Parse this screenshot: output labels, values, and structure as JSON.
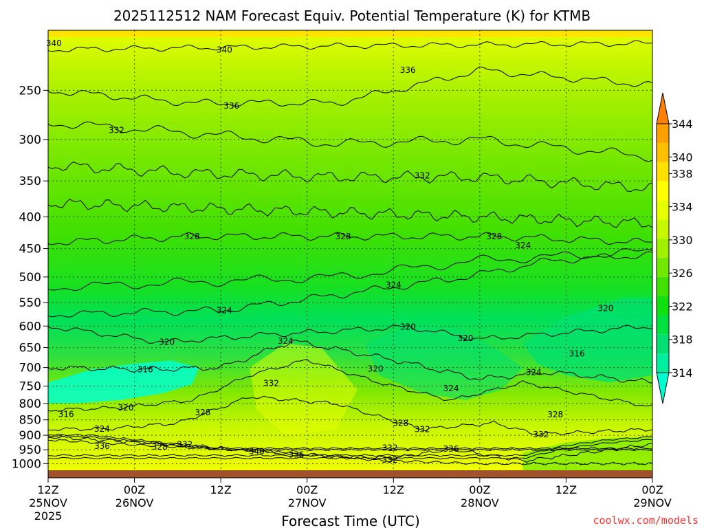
{
  "chart_data": {
    "type": "heatmap",
    "title": "2025112512 NAM Forecast Equiv. Potential Temperature (K) for KTMB",
    "xlabel": "Forecast Time (UTC)",
    "ylabel": "",
    "x_ticks": [
      {
        "hours": 0,
        "l1": "12Z",
        "l2": "25NOV",
        "l3": "2025"
      },
      {
        "hours": 12,
        "l1": "00Z",
        "l2": "26NOV",
        "l3": ""
      },
      {
        "hours": 24,
        "l1": "12Z",
        "l2": "",
        "l3": ""
      },
      {
        "hours": 36,
        "l1": "00Z",
        "l2": "27NOV",
        "l3": ""
      },
      {
        "hours": 48,
        "l1": "12Z",
        "l2": "",
        "l3": ""
      },
      {
        "hours": 60,
        "l1": "00Z",
        "l2": "28NOV",
        "l3": ""
      },
      {
        "hours": 72,
        "l1": "12Z",
        "l2": "",
        "l3": ""
      },
      {
        "hours": 84,
        "l1": "00Z",
        "l2": "29NOV",
        "l3": ""
      }
    ],
    "xlim_hours": [
      0,
      84
    ],
    "y_levels_hpa": [
      250,
      300,
      350,
      400,
      450,
      500,
      550,
      600,
      650,
      700,
      750,
      800,
      850,
      900,
      950,
      1000
    ],
    "ylim_hpa": [
      200,
      1025
    ],
    "y_scale": "log",
    "y_reversed": true,
    "grid": true,
    "colorbar": {
      "levels": [
        314,
        316,
        318,
        320,
        322,
        324,
        326,
        328,
        330,
        332,
        334,
        336,
        338,
        340,
        342,
        344
      ],
      "tick_labels": [
        314,
        318,
        322,
        326,
        330,
        334,
        338,
        340,
        344
      ],
      "colors": [
        "#00ffd0",
        "#00f0a0",
        "#00e070",
        "#00e040",
        "#10e010",
        "#40e000",
        "#70e800",
        "#a0f000",
        "#c8f800",
        "#e8ff00",
        "#ffff00",
        "#ffe000",
        "#ffc000",
        "#ffa000",
        "#ff8000"
      ]
    },
    "contour_labels": [
      {
        "hours": 0.8,
        "hpa": 210,
        "value": 340
      },
      {
        "hours": 24.5,
        "hpa": 215,
        "value": 340
      },
      {
        "hours": 25.5,
        "hpa": 265,
        "value": 336
      },
      {
        "hours": 50,
        "hpa": 232,
        "value": 336
      },
      {
        "hours": 9.5,
        "hpa": 290,
        "value": 332
      },
      {
        "hours": 52,
        "hpa": 343,
        "value": 332
      },
      {
        "hours": 20,
        "hpa": 430,
        "value": 328
      },
      {
        "hours": 41,
        "hpa": 430,
        "value": 328
      },
      {
        "hours": 62,
        "hpa": 430,
        "value": 328
      },
      {
        "hours": 66,
        "hpa": 445,
        "value": 324
      },
      {
        "hours": 48,
        "hpa": 515,
        "value": 324
      },
      {
        "hours": 24.5,
        "hpa": 566,
        "value": 324
      },
      {
        "hours": 77.5,
        "hpa": 562,
        "value": 320
      },
      {
        "hours": 50,
        "hpa": 602,
        "value": 320
      },
      {
        "hours": 58,
        "hpa": 628,
        "value": 320
      },
      {
        "hours": 16.5,
        "hpa": 637,
        "value": 320
      },
      {
        "hours": 33,
        "hpa": 634,
        "value": 324
      },
      {
        "hours": 73.5,
        "hpa": 665,
        "value": 316
      },
      {
        "hours": 13.5,
        "hpa": 705,
        "value": 316
      },
      {
        "hours": 45.5,
        "hpa": 703,
        "value": 320
      },
      {
        "hours": 67.5,
        "hpa": 712,
        "value": 324
      },
      {
        "hours": 31,
        "hpa": 742,
        "value": 332
      },
      {
        "hours": 56,
        "hpa": 756,
        "value": 324
      },
      {
        "hours": 10.8,
        "hpa": 812,
        "value": 320
      },
      {
        "hours": 2.5,
        "hpa": 832,
        "value": 316
      },
      {
        "hours": 21.5,
        "hpa": 827,
        "value": 328
      },
      {
        "hours": 70.5,
        "hpa": 834,
        "value": 328
      },
      {
        "hours": 49,
        "hpa": 860,
        "value": 328
      },
      {
        "hours": 7.5,
        "hpa": 879,
        "value": 324
      },
      {
        "hours": 52,
        "hpa": 880,
        "value": 332
      },
      {
        "hours": 68.5,
        "hpa": 897,
        "value": 332
      },
      {
        "hours": 7.5,
        "hpa": 937,
        "value": 336
      },
      {
        "hours": 15.5,
        "hpa": 940,
        "value": 328
      },
      {
        "hours": 19,
        "hpa": 931,
        "value": 332
      },
      {
        "hours": 47.5,
        "hpa": 943,
        "value": 332
      },
      {
        "hours": 56,
        "hpa": 947,
        "value": 336
      },
      {
        "hours": 29,
        "hpa": 955,
        "value": 340
      },
      {
        "hours": 34.5,
        "hpa": 968,
        "value": 336
      },
      {
        "hours": 47.5,
        "hpa": 987,
        "value": 332
      }
    ]
  },
  "footer": {
    "credit": "coolwx.com/models"
  }
}
